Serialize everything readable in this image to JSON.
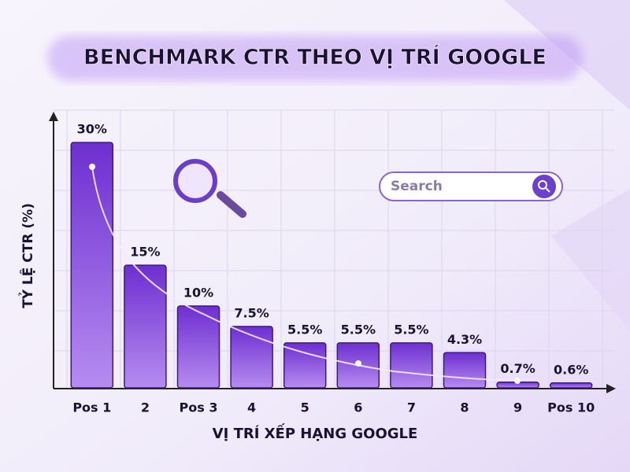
{
  "chart_data": {
    "type": "bar",
    "title": "BENCHMARK CTR THEO VỊ TRÍ GOOGLE",
    "x_label": "VỊ TRÍ XẾP HẠNG GOOGLE",
    "y_label": "TỶ LỆ CTR (%)",
    "categories": [
      "Pos 1",
      "2",
      "Pos 3",
      "4",
      "5",
      "6",
      "7",
      "8",
      "9",
      "Pos 10"
    ],
    "values": [
      30,
      15,
      10,
      7.5,
      5.5,
      5.5,
      5.5,
      4.3,
      0.7,
      0.6
    ],
    "value_labels": [
      "30%",
      "15%",
      "10%",
      "7.5%",
      "5.5%",
      "5.5%",
      "5.5%",
      "4.3%",
      "0.7%",
      "0.6%"
    ],
    "color": "#7b3fd6",
    "ylim": [
      0,
      33
    ]
  },
  "search_box": {
    "placeholder": "Search"
  }
}
